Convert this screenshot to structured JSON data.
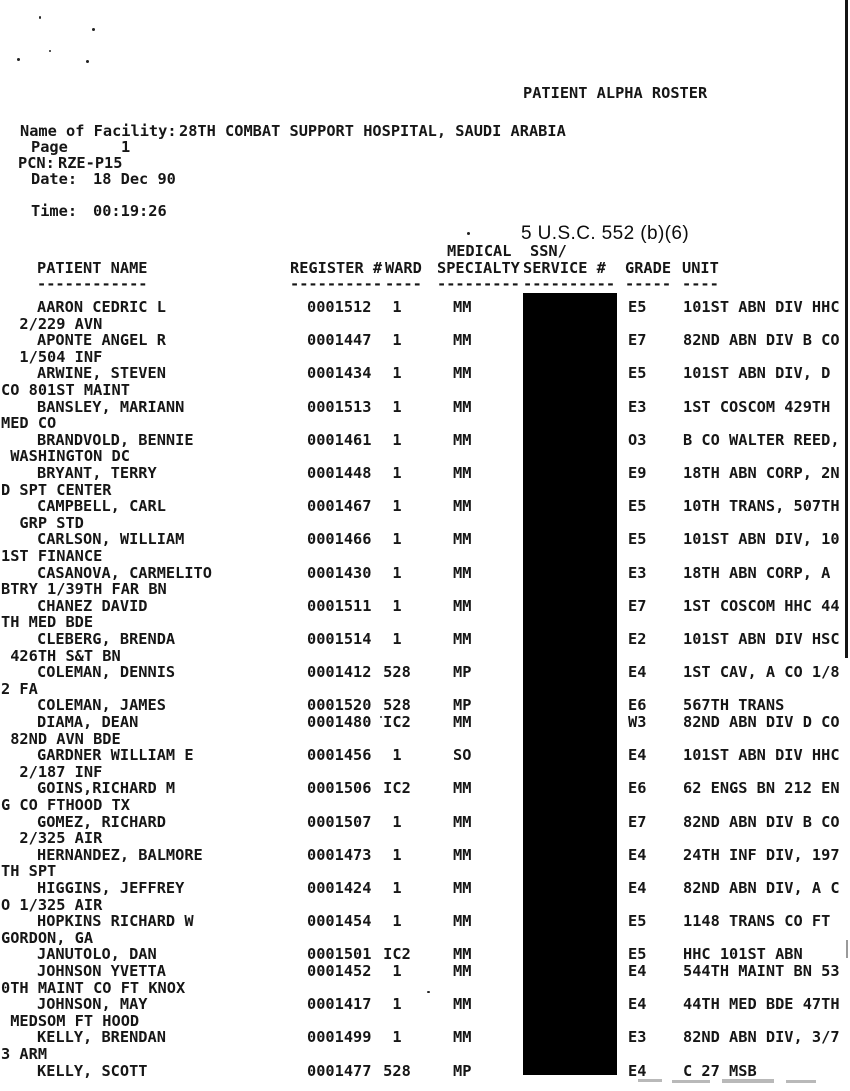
{
  "title": "PATIENT ALPHA ROSTER",
  "foia_stamp": "5 U.S.C. 552 (b)(6)",
  "meta": {
    "facility_label": "Name of Facility:",
    "facility_value": "28TH COMBAT SUPPORT HOSPITAL, SAUDI ARABIA",
    "page_label": "Page",
    "page_value": "1",
    "pcn_label": "PCN:",
    "pcn_value": "RZE-P15",
    "date_label": "Date:",
    "date_value": "18 Dec 90",
    "time_label": "Time:",
    "time_value": "00:19:26"
  },
  "table": {
    "headers": {
      "medical_top": "MEDICAL",
      "ssn_top": "SSN/",
      "patient_name": "PATIENT NAME",
      "register": "REGISTER #",
      "ward": "WARD",
      "specialty": "SPECIALTY",
      "service": "SERVICE #",
      "grade": "GRADE",
      "unit": "UNIT",
      "dash_name": "------------",
      "dash_register": "----------",
      "dash_ward": "----",
      "dash_specialty": "---------",
      "dash_service": "----------",
      "dash_grade": "-----",
      "dash_unit": "----"
    },
    "redaction": {
      "covers_column": "SSN/SERVICE #",
      "color": "#000000"
    },
    "rows": [
      {
        "name": "AARON CEDRIC L",
        "register": "0001512",
        "ward": "1",
        "specialty": "MM",
        "grade": "E5",
        "unit": "101ST ABN DIV HHC",
        "cont": "  2/229 AVN"
      },
      {
        "name": "APONTE ANGEL R",
        "register": "0001447",
        "ward": "1",
        "specialty": "MM",
        "grade": "E7",
        "unit": "82ND ABN DIV B CO",
        "cont": "  1/504 INF"
      },
      {
        "name": "ARWINE, STEVEN",
        "register": "0001434",
        "ward": "1",
        "specialty": "MM",
        "grade": "E5",
        "unit": "101ST ABN DIV, D",
        "cont": "CO 801ST MAINT"
      },
      {
        "name": "BANSLEY, MARIANN",
        "register": "0001513",
        "ward": "1",
        "specialty": "MM",
        "grade": "E3",
        "unit": "1ST COSCOM 429TH",
        "cont": "MED CO"
      },
      {
        "name": "BRANDVOLD, BENNIE",
        "register": "0001461",
        "ward": "1",
        "specialty": "MM",
        "grade": "O3",
        "unit": "B CO WALTER REED,",
        "cont": " WASHINGTON DC"
      },
      {
        "name": "BRYANT, TERRY",
        "register": "0001448",
        "ward": "1",
        "specialty": "MM",
        "grade": "E9",
        "unit": "18TH ABN CORP, 2N",
        "cont": "D SPT CENTER"
      },
      {
        "name": "CAMPBELL, CARL",
        "register": "0001467",
        "ward": "1",
        "specialty": "MM",
        "grade": "E5",
        "unit": "10TH TRANS, 507TH",
        "cont": "  GRP STD"
      },
      {
        "name": "CARLSON, WILLIAM",
        "register": "0001466",
        "ward": "1",
        "specialty": "MM",
        "grade": "E5",
        "unit": "101ST ABN DIV, 10",
        "cont": "1ST FINANCE"
      },
      {
        "name": "CASANOVA, CARMELITO",
        "register": "0001430",
        "ward": "1",
        "specialty": "MM",
        "grade": "E3",
        "unit": "18TH ABN CORP, A",
        "cont": "BTRY 1/39TH FAR BN"
      },
      {
        "name": "CHANEZ DAVID",
        "register": "0001511",
        "ward": "1",
        "specialty": "MM",
        "grade": "E7",
        "unit": "1ST COSCOM HHC 44",
        "cont": "TH MED BDE"
      },
      {
        "name": "CLEBERG, BRENDA",
        "register": "0001514",
        "ward": "1",
        "specialty": "MM",
        "grade": "E2",
        "unit": "101ST ABN DIV HSC",
        "cont": " 426TH S&T BN"
      },
      {
        "name": "COLEMAN, DENNIS",
        "register": "0001412",
        "ward": "528",
        "specialty": "MP",
        "grade": "E4",
        "unit": "1ST CAV, A CO 1/8",
        "cont": "2 FA"
      },
      {
        "name": "COLEMAN, JAMES",
        "register": "0001520",
        "ward": "528",
        "specialty": "MP",
        "grade": "E6",
        "unit": "567TH TRANS",
        "cont": null
      },
      {
        "name": "DIAMA, DEAN",
        "register": "0001480",
        "ward": "IC2",
        "specialty": "MM",
        "grade": "W3",
        "unit": "82ND ABN DIV D CO",
        "cont": " 82ND AVN BDE"
      },
      {
        "name": "GARDNER WILLIAM E",
        "register": "0001456",
        "ward": "1",
        "specialty": "SO",
        "grade": "E4",
        "unit": "101ST ABN DIV HHC",
        "cont": "  2/187 INF"
      },
      {
        "name": "GOINS,RICHARD M",
        "register": "0001506",
        "ward": "IC2",
        "specialty": "MM",
        "grade": "E6",
        "unit": "62 ENGS BN 212 EN",
        "cont": "G CO FTHOOD TX"
      },
      {
        "name": "GOMEZ, RICHARD",
        "register": "0001507",
        "ward": "1",
        "specialty": "MM",
        "grade": "E7",
        "unit": "82ND ABN DIV B CO",
        "cont": "  2/325 AIR"
      },
      {
        "name": "HERNANDEZ, BALMORE",
        "register": "0001473",
        "ward": "1",
        "specialty": "MM",
        "grade": "E4",
        "unit": "24TH INF DIV, 197",
        "cont": "TH SPT"
      },
      {
        "name": "HIGGINS, JEFFREY",
        "register": "0001424",
        "ward": "1",
        "specialty": "MM",
        "grade": "E4",
        "unit": "82ND ABN DIV, A C",
        "cont": "O 1/325 AIR"
      },
      {
        "name": "HOPKINS RICHARD W",
        "register": "0001454",
        "ward": "1",
        "specialty": "MM",
        "grade": "E5",
        "unit": "1148 TRANS CO FT",
        "cont": "GORDON, GA"
      },
      {
        "name": "JANUTOLO, DAN",
        "register": "0001501",
        "ward": "IC2",
        "specialty": "MM",
        "grade": "E5",
        "unit": "HHC 101ST ABN",
        "cont": null
      },
      {
        "name": "JOHNSON YVETTA",
        "register": "0001452",
        "ward": "1",
        "specialty": "MM",
        "grade": "E4",
        "unit": "544TH MAINT BN 53",
        "cont": "0TH MAINT CO FT KNOX"
      },
      {
        "name": "JOHNSON, MAY",
        "register": "0001417",
        "ward": "1",
        "specialty": "MM",
        "grade": "E4",
        "unit": "44TH MED BDE 47TH",
        "cont": " MEDSOM FT HOOD"
      },
      {
        "name": "KELLY, BRENDAN",
        "register": "0001499",
        "ward": "1",
        "specialty": "MM",
        "grade": "E3",
        "unit": "82ND ABN DIV, 3/7",
        "cont": "3 ARM"
      },
      {
        "name": "KELLY, SCOTT",
        "register": "0001477",
        "ward": "528",
        "specialty": "MP",
        "grade": "E4",
        "unit": "C 27 MSB",
        "cont": null
      }
    ]
  }
}
